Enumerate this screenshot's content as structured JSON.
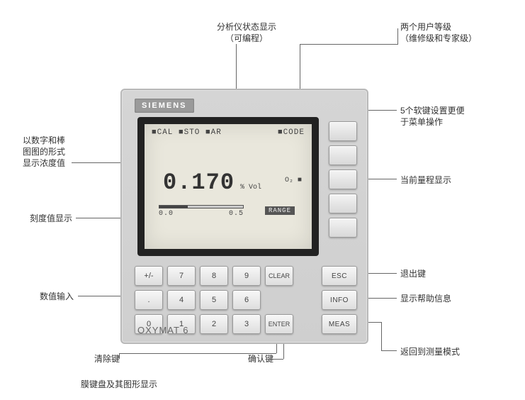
{
  "annotations": {
    "status_display": "分析仪状态显示\n（可编程）",
    "user_levels": "两个用户等级\n（维修级和专家级）",
    "softkeys_label": "5个软键设置更便\n于菜单操作",
    "concentration": "以数字和棒\n图图的形式\n显示浓度值",
    "range_display": "当前量程显示",
    "scale_display": "刻度值显示",
    "exit_key": "退出键",
    "numeric_input": "数值输入",
    "help_info": "显示帮助信息",
    "return_measure": "返回到测量模式",
    "clear_key": "清除键",
    "enter_key": "确认键",
    "caption": "膜键盘及其图形显示"
  },
  "device": {
    "brand": "SIEMENS",
    "model": "OXYMAT 6",
    "screen": {
      "top_left": "■CAL  ■STO  ■AR",
      "top_right": "■CODE",
      "value": "0.170",
      "unit": "% Vol",
      "gas": "O₂ ■",
      "bar_fill_pct": 34,
      "bar_min": "0.0",
      "bar_max": "0.5",
      "range_label": "RANGE"
    },
    "keypad": [
      [
        "+/-",
        "7",
        "8",
        "9",
        "CLEAR"
      ],
      [
        ".",
        "4",
        "5",
        "6",
        ""
      ],
      [
        "0",
        "1",
        "2",
        "3",
        "ENTER"
      ]
    ],
    "funckeys": [
      "ESC",
      "INFO",
      "MEAS"
    ]
  },
  "style": {
    "panel_bg": "#d0d0d0",
    "screen_bg": "#e9e7dc",
    "bezel": "#222222",
    "key_bg": "#ececec",
    "accent": "#666666"
  }
}
